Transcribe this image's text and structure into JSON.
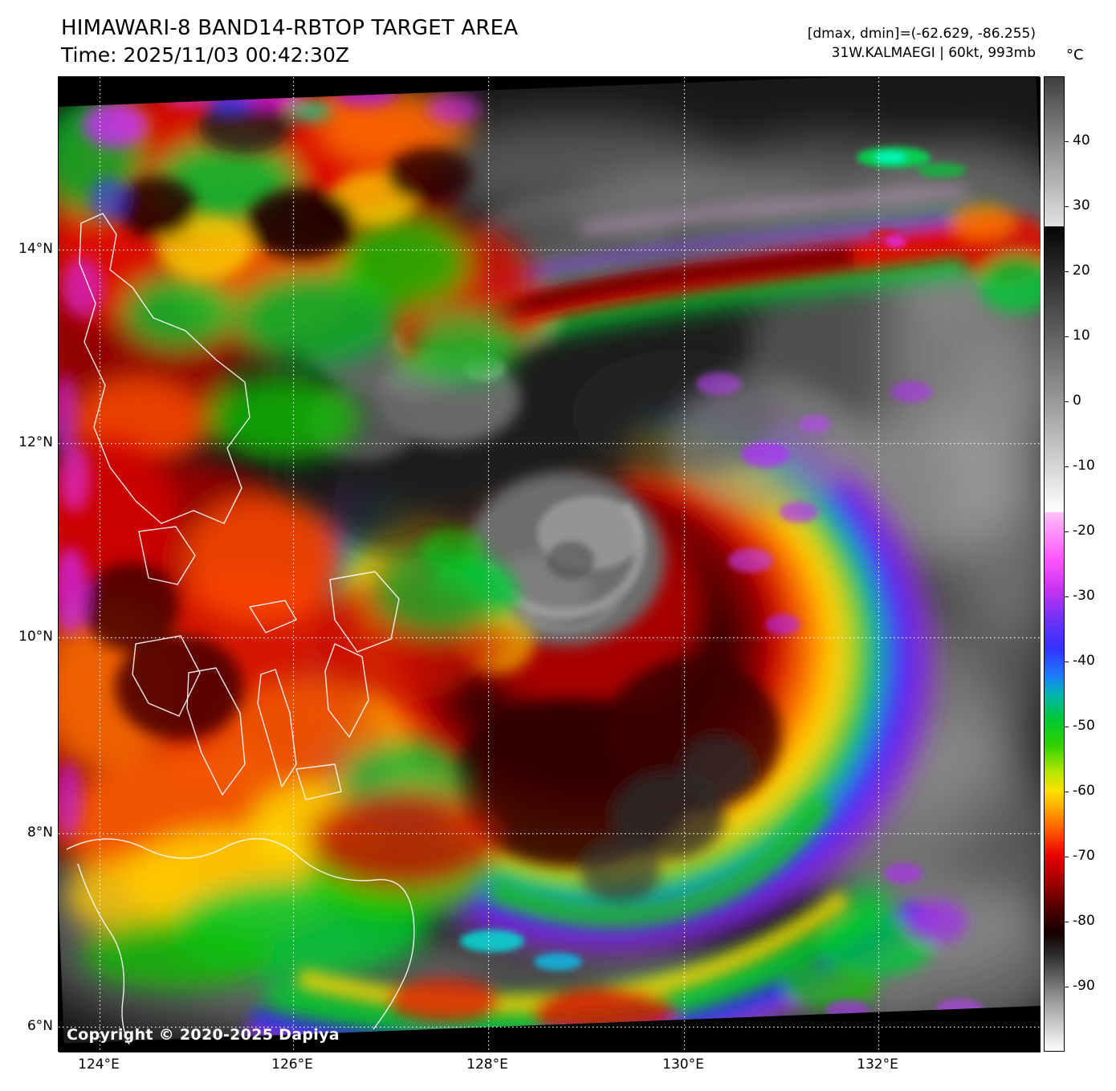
{
  "header": {
    "title": "HIMAWARI-8 BAND14-RBTOP TARGET AREA",
    "time": "Time: 2025/11/03 00:42:30Z",
    "range_readout": "[dmax, dmin]=(-62.629, -86.255)",
    "storm_readout": "31W.KALMAEGI | 60kt, 993mb"
  },
  "colorbar": {
    "unit": "°C",
    "value_range": [
      50,
      -100
    ],
    "tick_values": [
      40,
      30,
      20,
      10,
      0,
      -10,
      -20,
      -30,
      -40,
      -50,
      -60,
      -70,
      -80,
      -90
    ],
    "tick_labels": [
      "40",
      "30",
      "20",
      "10",
      "0",
      "-10",
      "-20",
      "-30",
      "-40",
      "-50",
      "-60",
      "-70",
      "-80",
      "-90"
    ],
    "stops": [
      {
        "value": 50,
        "color": "#3f3f3f"
      },
      {
        "value": 40,
        "color": "#8a8a8a"
      },
      {
        "value": 27,
        "color": "#e2e2e2"
      },
      {
        "value": 27,
        "color": "#050505"
      },
      {
        "value": 0,
        "color": "#999999"
      },
      {
        "value": -17,
        "color": "#ffffff"
      },
      {
        "value": -17,
        "color": "#ffc0fa"
      },
      {
        "value": -24,
        "color": "#ff5aff"
      },
      {
        "value": -29,
        "color": "#c832f0"
      },
      {
        "value": -33,
        "color": "#7832f5"
      },
      {
        "value": -38,
        "color": "#3232ff"
      },
      {
        "value": -42,
        "color": "#1e78ff"
      },
      {
        "value": -45,
        "color": "#00b4b4"
      },
      {
        "value": -49,
        "color": "#00c832"
      },
      {
        "value": -53,
        "color": "#32d200"
      },
      {
        "value": -57,
        "color": "#b4e600"
      },
      {
        "value": -60,
        "color": "#ffe100"
      },
      {
        "value": -63,
        "color": "#ffa000"
      },
      {
        "value": -66,
        "color": "#ff5a00"
      },
      {
        "value": -70,
        "color": "#e60000"
      },
      {
        "value": -74,
        "color": "#a00000"
      },
      {
        "value": -78,
        "color": "#500000"
      },
      {
        "value": -82,
        "color": "#140000"
      },
      {
        "value": -85,
        "color": "#2a2a2a"
      },
      {
        "value": -92,
        "color": "#969696"
      },
      {
        "value": -100,
        "color": "#ffffff"
      }
    ]
  },
  "axes": {
    "lat_labels": [
      "14°N",
      "12°N",
      "10°N",
      "8°N",
      "6°N"
    ],
    "lon_labels": [
      "124°E",
      "126°E",
      "128°E",
      "130°E",
      "132°E"
    ]
  },
  "watermark": "Copyright © 2020-2025 Dapiya"
}
